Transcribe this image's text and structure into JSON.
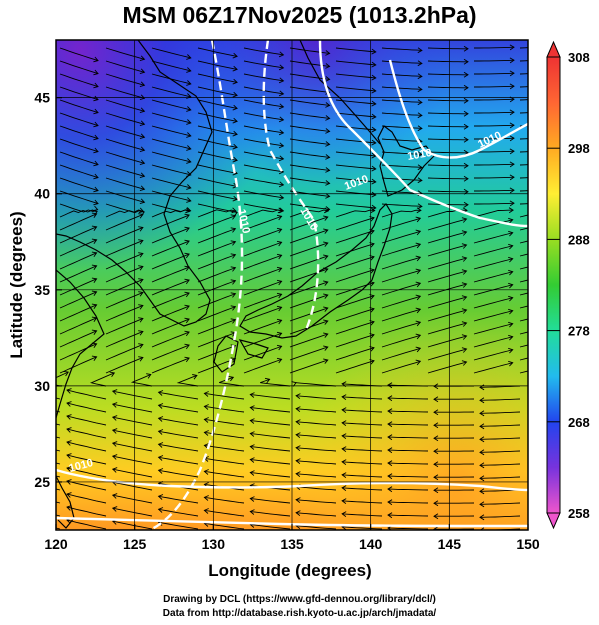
{
  "title": "MSM 06Z17Nov2025 (1013.2hPa)",
  "map": {
    "lon_range": [
      120,
      150
    ],
    "lat_range": [
      22.5,
      48
    ],
    "x_ticks": [
      "120",
      "125",
      "130",
      "135",
      "140",
      "145",
      "150"
    ],
    "y_ticks": [
      "25",
      "30",
      "35",
      "40",
      "45"
    ],
    "xlabel": "Longitude (degrees)",
    "ylabel": "Latitude  (degrees)",
    "gridlines": true,
    "contour_labels": [
      "1010",
      "1010",
      "1010",
      "1010",
      "1010",
      "1010"
    ]
  },
  "colorbar": {
    "min": 258,
    "max": 308,
    "labels": [
      "308",
      "298",
      "288",
      "278",
      "268",
      "258"
    ],
    "colors": [
      "#ee55cc",
      "#7733dd",
      "#2244ee",
      "#22bbee",
      "#22dd99",
      "#33cc33",
      "#99dd22",
      "#ffee33",
      "#ffaa22",
      "#ff6633",
      "#ee3333"
    ]
  },
  "credits": {
    "line1": "Drawing by DCL (https://www.gfd-dennou.org/library/dcl/)",
    "line2": "Data from http://database.rish.kyoto-u.ac.jp/arch/jmadata/"
  }
}
